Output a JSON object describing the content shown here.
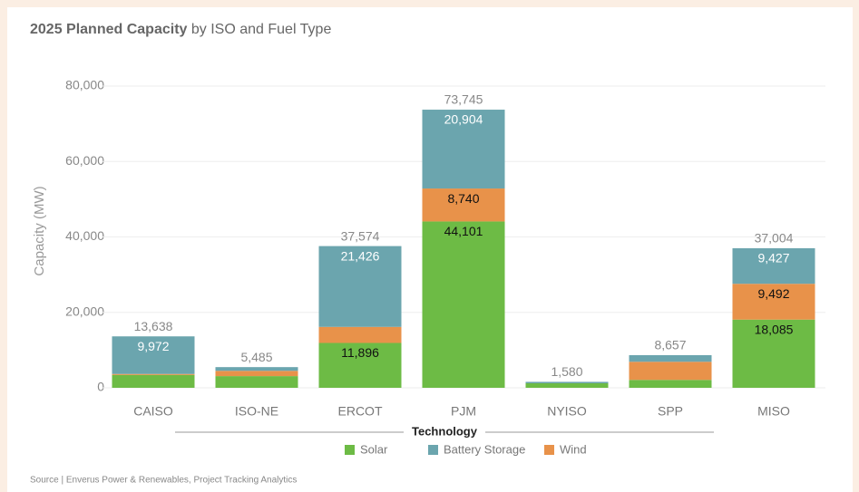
{
  "chart_data": {
    "type": "stacked_bar",
    "title": {
      "bold": "2025 Planned Capacity",
      "rest": "by ISO and Fuel Type"
    },
    "y_label": "Capacity (MW)",
    "legend_title": "Technology",
    "source": "Source | Enverus Power & Renewables, Project Tracking Analytics",
    "categories": [
      "CAISO",
      "ISO-NE",
      "ERCOT",
      "PJM",
      "NYISO",
      "SPP",
      "MISO"
    ],
    "series": [
      {
        "name": "Solar",
        "color": "#6dbb45",
        "label_color": "#111111",
        "values": [
          3400,
          3100,
          11896,
          44101,
          1200,
          2100,
          18085
        ],
        "value_labels": [
          null,
          null,
          "11,896",
          "44,101",
          null,
          null,
          "18,085"
        ]
      },
      {
        "name": "Battery Storage",
        "color": "#6ba5ae",
        "label_color": "#ffffff",
        "values": [
          9972,
          985,
          21426,
          20904,
          380,
          1757,
          9427
        ],
        "value_labels": [
          "9,972",
          null,
          "21,426",
          "20,904",
          null,
          null,
          "9,427"
        ]
      },
      {
        "name": "Wind",
        "color": "#e8924a",
        "label_color": "#111111",
        "values": [
          266,
          1400,
          4252,
          8740,
          0,
          4800,
          9492
        ],
        "value_labels": [
          null,
          null,
          null,
          "8,740",
          null,
          null,
          "9,492"
        ]
      }
    ],
    "totals": [
      13638,
      5485,
      37574,
      73745,
      1580,
      8657,
      37004
    ],
    "total_labels": [
      "13,638",
      "5,485",
      "37,574",
      "73,745",
      "1,580",
      "8,657",
      "37,004"
    ],
    "ylim": [
      0,
      80000
    ],
    "yticks": [
      0,
      {
        "value": 20000,
        "label": "20,000"
      },
      {
        "value": 40000,
        "label": "40,000"
      },
      {
        "value": 60000,
        "label": "60,000"
      },
      {
        "value": 80000,
        "label": "80,000"
      }
    ],
    "grid": true
  }
}
